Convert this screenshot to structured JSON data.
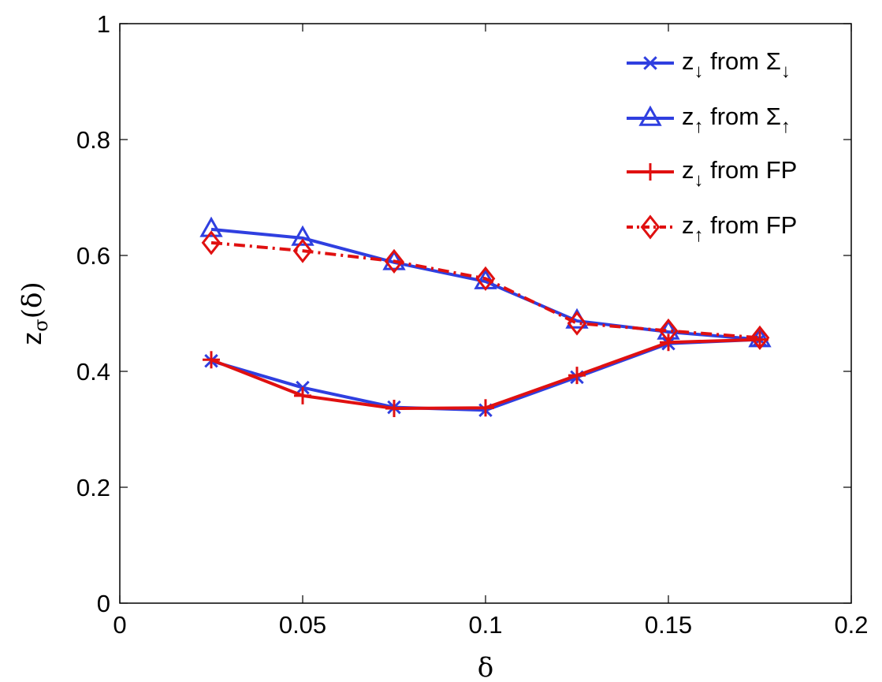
{
  "chart_data": {
    "type": "line",
    "xlabel": "δ",
    "ylabel": "z",
    "ylabel_sub": "σ",
    "ylabel_arg": "(δ)",
    "xlim": [
      0,
      0.2
    ],
    "ylim": [
      0,
      1
    ],
    "xticks": [
      0,
      0.05,
      0.1,
      0.15,
      0.2
    ],
    "xtick_labels": [
      "0",
      "0.05",
      "0.1",
      "0.15",
      "0.2"
    ],
    "yticks": [
      0,
      0.2,
      0.4,
      0.6,
      0.8,
      1
    ],
    "ytick_labels": [
      "0",
      "0.2",
      "0.4",
      "0.6",
      "0.8",
      "1"
    ],
    "grid": false,
    "legend_position": "top-right",
    "x": [
      0.025,
      0.05,
      0.075,
      0.1,
      0.125,
      0.15,
      0.175
    ],
    "series": [
      {
        "name": "z↓ from Σ↓",
        "label_main": "z",
        "label_sub": "↓",
        "label_rest": " from Σ",
        "label_sub2": "↓",
        "color": "#2f3fe0",
        "marker": "x",
        "dash": "solid",
        "values": [
          0.418,
          0.372,
          0.338,
          0.333,
          0.39,
          0.448,
          0.455
        ]
      },
      {
        "name": "z↑ from Σ↑",
        "label_main": "z",
        "label_sub": "↑",
        "label_rest": " from Σ",
        "label_sub2": "↑",
        "color": "#2f3fe0",
        "marker": "triangle",
        "dash": "solid",
        "values": [
          0.645,
          0.63,
          0.588,
          0.555,
          0.487,
          0.468,
          0.455
        ]
      },
      {
        "name": "z↓ from FP",
        "label_main": "z",
        "label_sub": "↓",
        "label_rest": " from FP",
        "label_sub2": "",
        "color": "#e01010",
        "marker": "plus",
        "dash": "solid",
        "values": [
          0.42,
          0.358,
          0.336,
          0.337,
          0.393,
          0.45,
          0.455
        ]
      },
      {
        "name": "z↑ from FP",
        "label_main": "z",
        "label_sub": "↑",
        "label_rest": " from FP",
        "label_sub2": "",
        "color": "#e01010",
        "marker": "diamond",
        "dash": "dashdot",
        "values": [
          0.622,
          0.608,
          0.59,
          0.56,
          0.483,
          0.47,
          0.458
        ]
      }
    ]
  }
}
